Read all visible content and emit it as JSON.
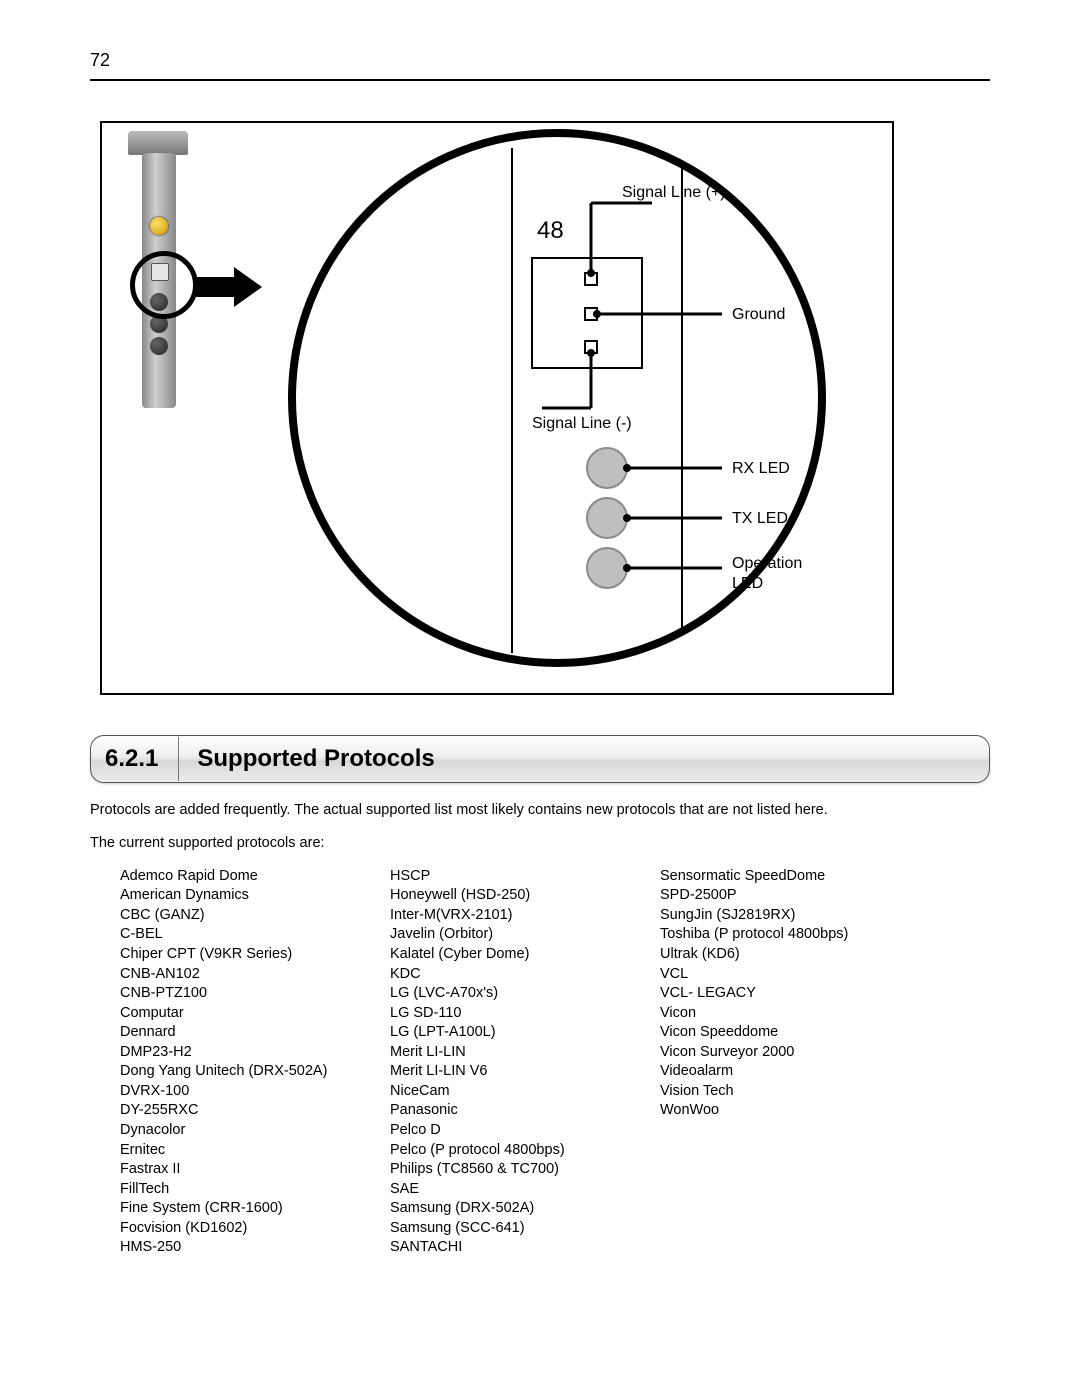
{
  "page_number": "72",
  "diagram": {
    "connector_label": "48",
    "labels": {
      "signal_plus": "Signal Line (+)",
      "ground": "Ground",
      "signal_minus": "Signal Line (-)",
      "rx_led": "RX LED",
      "tx_led": "TX LED",
      "op_led_1": "Operation",
      "op_led_2": "LED"
    },
    "colors": {
      "frame_border": "#000000",
      "circle_stroke": "#000000",
      "led_fill": "#bfbfbf",
      "led_stroke": "#8a8a8a",
      "pin_box_stroke": "#000000",
      "pin_fill": "#ffffff",
      "label_text": "#000000",
      "vertical_line": "#000000"
    }
  },
  "section": {
    "number": "6.2.1",
    "title": "Supported Protocols"
  },
  "intro_line1": "Protocols are added frequently. The actual supported list most likely contains new protocols that are not listed here.",
  "intro_line2": "The current supported protocols are:",
  "protocols": {
    "col1": [
      "Ademco Rapid Dome",
      "American Dynamics",
      "CBC (GANZ)",
      "C-BEL",
      "Chiper CPT (V9KR Series)",
      "CNB-AN102",
      "CNB-PTZ100",
      "Computar",
      "Dennard",
      "DMP23-H2",
      "Dong Yang Unitech (DRX-502A)",
      "DVRX-100",
      "DY-255RXC",
      "Dynacolor",
      "Ernitec",
      "Fastrax II",
      "FillTech",
      "Fine System (CRR-1600)",
      "Focvision (KD1602)",
      "HMS-250"
    ],
    "col2": [
      "HSCP",
      "Honeywell (HSD-250)",
      "Inter-M(VRX-2101)",
      "Javelin (Orbitor)",
      "Kalatel (Cyber Dome)",
      "KDC",
      "LG (LVC-A70x's)",
      "LG SD-110",
      "LG (LPT-A100L)",
      "Merit LI-LIN",
      "Merit LI-LIN V6",
      "NiceCam",
      "Panasonic",
      "Pelco D",
      "Pelco (P protocol 4800bps)",
      "Philips (TC8560 & TC700)",
      "SAE",
      "Samsung (DRX-502A)",
      "Samsung (SCC-641)",
      "SANTACHI"
    ],
    "col3": [
      "Sensormatic SpeedDome",
      "SPD-2500P",
      "SungJin (SJ2819RX)",
      "Toshiba (P protocol 4800bps)",
      "Ultrak (KD6)",
      "VCL",
      "VCL- LEGACY",
      "Vicon",
      "Vicon Speeddome",
      "Vicon Surveyor 2000",
      "Videoalarm",
      "Vision Tech",
      "WonWoo"
    ]
  }
}
